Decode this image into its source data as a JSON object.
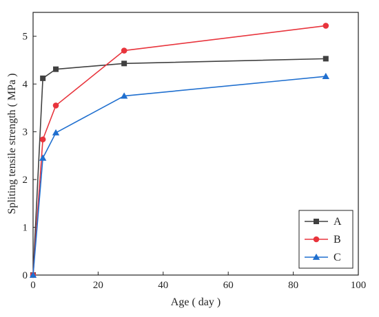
{
  "chart_data": {
    "type": "line",
    "xlabel": "Age ( day )",
    "ylabel": "Spliting tensile strength ( MPa )",
    "xlim": [
      0,
      100
    ],
    "ylim": [
      0,
      5.5
    ],
    "xticks": [
      0,
      20,
      40,
      60,
      80,
      100
    ],
    "yticks": [
      0,
      1,
      2,
      3,
      4,
      5
    ],
    "grid": false,
    "legend_position": "bottom-right",
    "series": [
      {
        "name": "A",
        "color": "#404040",
        "marker": "square",
        "x": [
          0,
          3,
          7,
          28,
          90
        ],
        "y": [
          0,
          4.12,
          4.31,
          4.43,
          4.53
        ]
      },
      {
        "name": "B",
        "color": "#e8343c",
        "marker": "circle",
        "x": [
          0,
          3,
          7,
          28,
          90
        ],
        "y": [
          0,
          2.84,
          3.55,
          4.7,
          5.22
        ]
      },
      {
        "name": "C",
        "color": "#1f6fcf",
        "marker": "triangle",
        "x": [
          0,
          3,
          7,
          28,
          90
        ],
        "y": [
          0,
          2.45,
          2.98,
          3.75,
          4.16
        ]
      }
    ]
  }
}
